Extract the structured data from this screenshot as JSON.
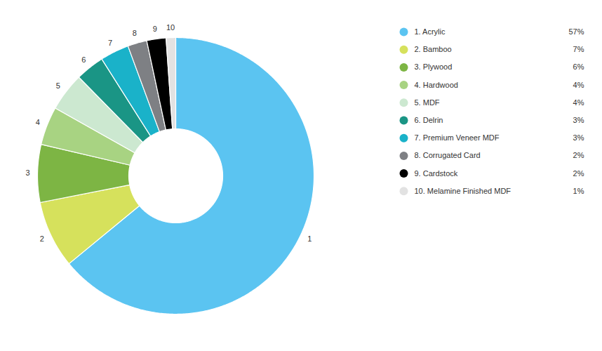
{
  "chart_data": {
    "type": "donut",
    "categories": [
      "1. Acrylic",
      "2. Bamboo",
      "3. Plywood",
      "4. Hardwood",
      "5. MDF",
      "6. Delrin",
      "7. Premium Veneer MDF",
      "8. Corrugated Card",
      "9. Cardstock",
      "10. Melamine Finished MDF"
    ],
    "slice_labels": [
      "1",
      "2",
      "3",
      "4",
      "5",
      "6",
      "7",
      "8",
      "9",
      "10"
    ],
    "values": [
      57,
      7,
      6,
      4,
      4,
      3,
      3,
      2,
      2,
      1
    ],
    "value_labels": [
      "57%",
      "7%",
      "6%",
      "4%",
      "4%",
      "3%",
      "3%",
      "2%",
      "2%",
      "1%"
    ],
    "colors": [
      "#5bc4f1",
      "#d6e15c",
      "#7db544",
      "#a8d382",
      "#cce8d0",
      "#1a9585",
      "#1ab2c9",
      "#7e8084",
      "#000000",
      "#e2e2e2"
    ],
    "legend": "right"
  }
}
